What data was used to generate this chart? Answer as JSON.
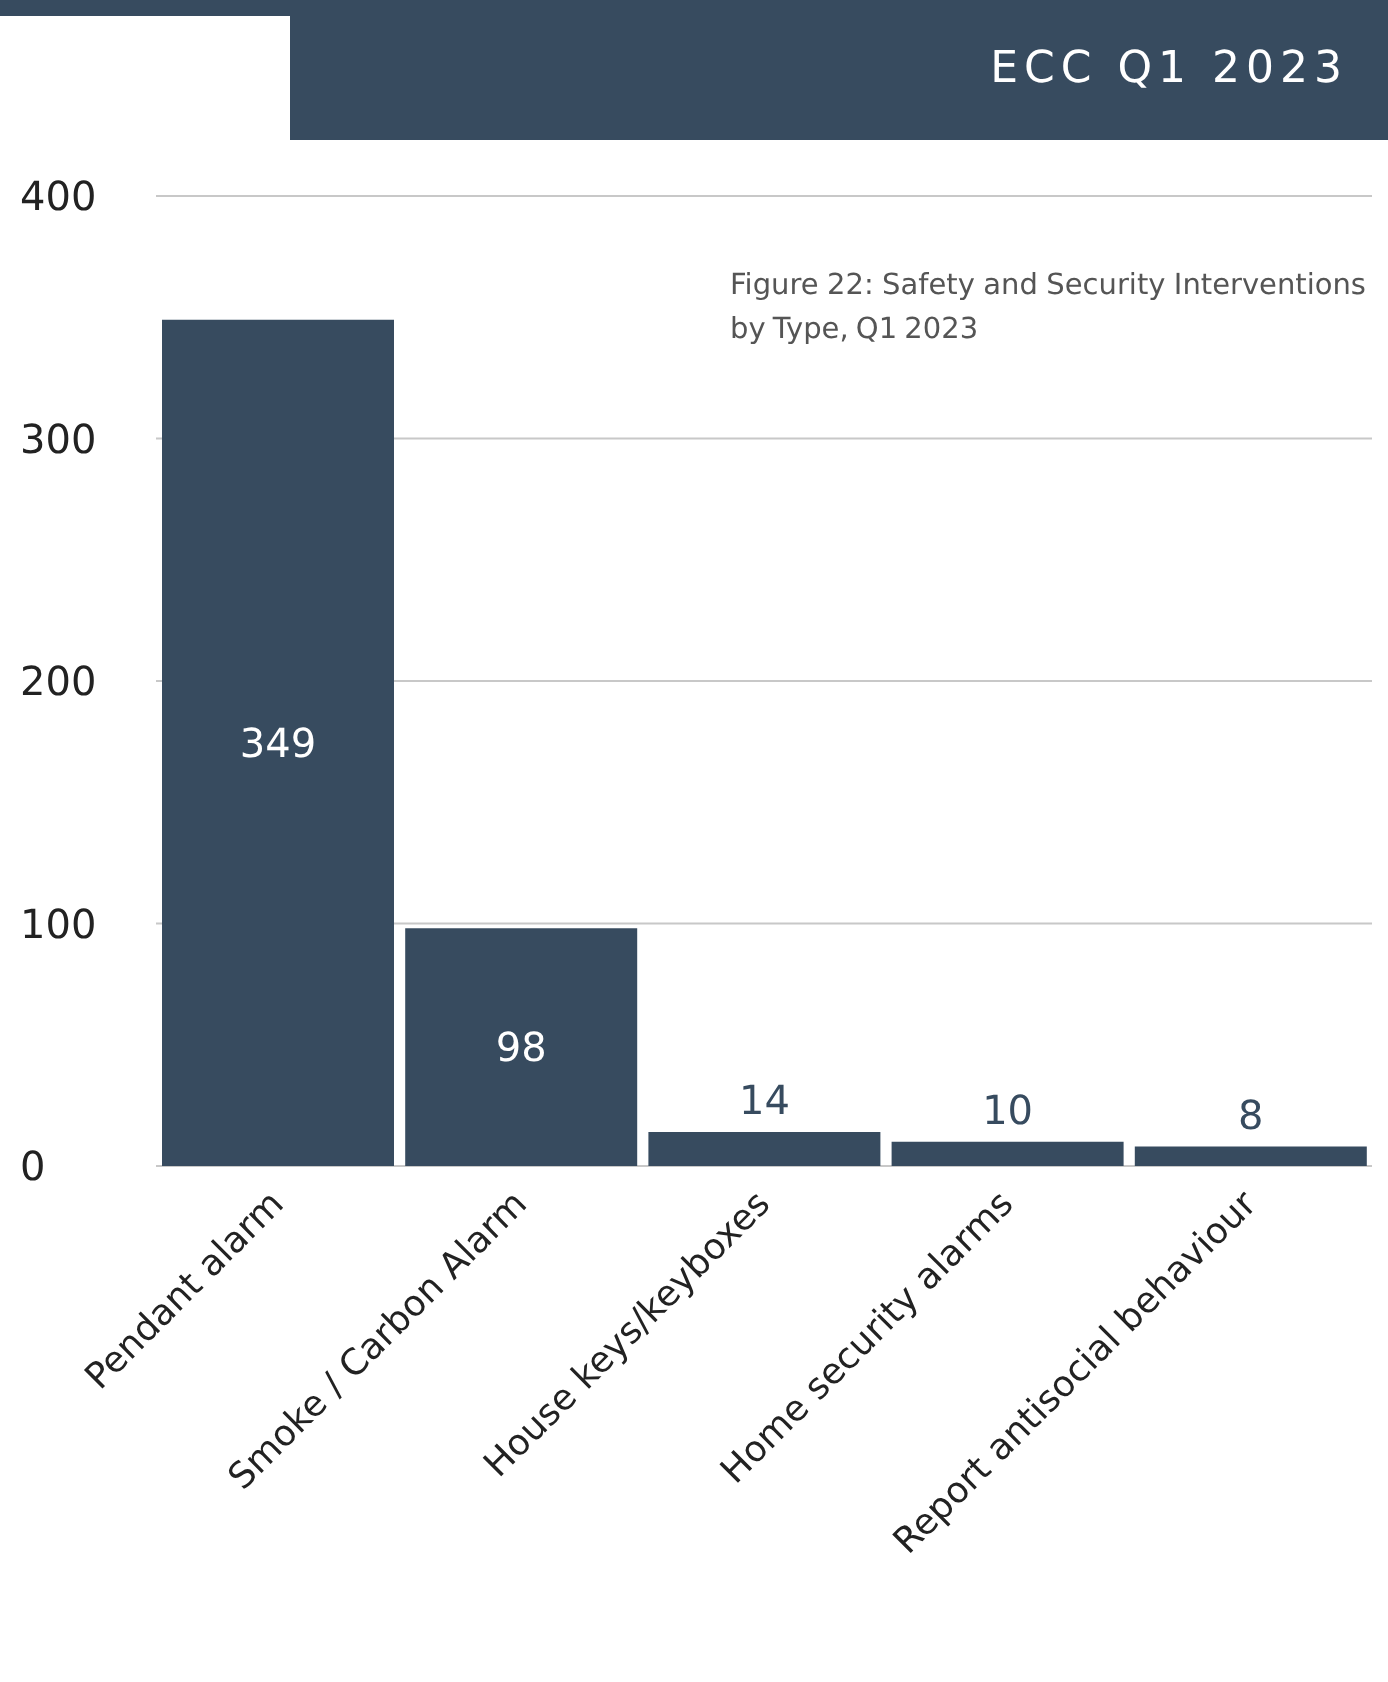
{
  "chart_data": {
    "type": "bar",
    "title": "Figure 22: Safety and Security Interventions by Type, Q1 2023",
    "annotations": [
      "ECC Q1 2023"
    ],
    "categories": [
      "Pendant alarm",
      "Smoke / Carbon Alarm",
      "House keys/keyboxes",
      "Home security alarms",
      "Report antisocial behaviour"
    ],
    "values": [
      349,
      98,
      14,
      10,
      8
    ],
    "color": "#374b5f",
    "ylim": [
      0,
      400
    ],
    "yticks": [
      0,
      100,
      200,
      300,
      400
    ],
    "grid": "y",
    "data_labels": true
  }
}
